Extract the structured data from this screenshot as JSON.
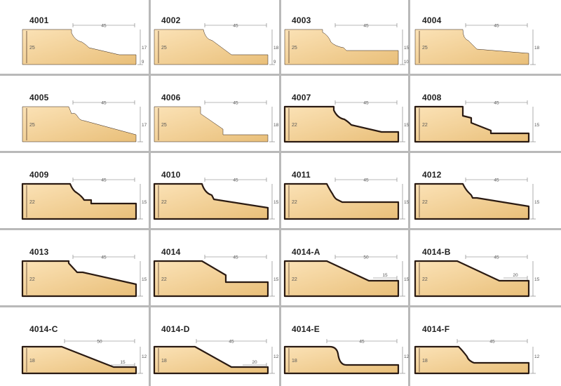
{
  "colors": {
    "wood_light": "#fbe2b6",
    "wood_dark": "#e9bf79",
    "outline": "#2a1a12",
    "divider": "#b9b9b9",
    "dim": "#555555"
  },
  "profiles": [
    {
      "code": "4001",
      "shape": "ogee_a",
      "outlined": false,
      "top_dim": "45",
      "height_dim": "25",
      "right_top": "17",
      "right_bottom": "9",
      "bottom_dim": ""
    },
    {
      "code": "4002",
      "shape": "cove_step",
      "outlined": false,
      "top_dim": "45",
      "height_dim": "25",
      "right_top": "18",
      "right_bottom": "9",
      "bottom_dim": ""
    },
    {
      "code": "4003",
      "shape": "ogee_b",
      "outlined": false,
      "top_dim": "45",
      "height_dim": "25",
      "right_top": "15",
      "right_bottom": "10",
      "bottom_dim": ""
    },
    {
      "code": "4004",
      "shape": "ogee_c",
      "outlined": false,
      "top_dim": "45",
      "height_dim": "25",
      "right_top": "18",
      "right_bottom": "",
      "bottom_dim": ""
    },
    {
      "code": "4005",
      "shape": "bead_slope",
      "outlined": false,
      "top_dim": "45",
      "height_dim": "25",
      "right_top": "17",
      "right_bottom": "",
      "bottom_dim": ""
    },
    {
      "code": "4006",
      "shape": "bevel_step",
      "outlined": false,
      "top_dim": "45",
      "height_dim": "25",
      "right_top": "18",
      "right_bottom": "",
      "bottom_dim": ""
    },
    {
      "code": "4007",
      "shape": "ogee_a",
      "outlined": true,
      "top_dim": "45",
      "height_dim": "22",
      "right_top": "15",
      "right_bottom": "",
      "bottom_dim": ""
    },
    {
      "code": "4008",
      "shape": "step_b",
      "outlined": true,
      "top_dim": "45",
      "height_dim": "22",
      "right_top": "15",
      "right_bottom": "",
      "bottom_dim": ""
    },
    {
      "code": "4009",
      "shape": "ogee_d",
      "outlined": true,
      "top_dim": "45",
      "height_dim": "22",
      "right_top": "15",
      "right_bottom": "",
      "bottom_dim": ""
    },
    {
      "code": "4010",
      "shape": "cove_long",
      "outlined": true,
      "top_dim": "45",
      "height_dim": "22",
      "right_top": "15",
      "right_bottom": "",
      "bottom_dim": ""
    },
    {
      "code": "4011",
      "shape": "ogee_e",
      "outlined": true,
      "top_dim": "45",
      "height_dim": "22",
      "right_top": "15",
      "right_bottom": "",
      "bottom_dim": ""
    },
    {
      "code": "4012",
      "shape": "ogee_f",
      "outlined": true,
      "top_dim": "45",
      "height_dim": "22",
      "right_top": "15",
      "right_bottom": "",
      "bottom_dim": ""
    },
    {
      "code": "4013",
      "shape": "chamfer_step",
      "outlined": true,
      "top_dim": "45",
      "height_dim": "22",
      "right_top": "15",
      "right_bottom": "",
      "bottom_dim": ""
    },
    {
      "code": "4014",
      "shape": "bevel_flat",
      "outlined": true,
      "top_dim": "45",
      "height_dim": "22",
      "right_top": "15",
      "right_bottom": "",
      "bottom_dim": ""
    },
    {
      "code": "4014-A",
      "shape": "long_bevel",
      "outlined": true,
      "top_dim": "50",
      "height_dim": "22",
      "right_top": "15",
      "right_bottom": "",
      "bottom_dim": "15"
    },
    {
      "code": "4014-B",
      "shape": "long_bevel",
      "outlined": true,
      "top_dim": "45",
      "height_dim": "22",
      "right_top": "15",
      "right_bottom": "",
      "bottom_dim": "20"
    },
    {
      "code": "4014-C",
      "shape": "bevel_18",
      "outlined": true,
      "top_dim": "50",
      "height_dim": "18",
      "right_top": "12",
      "right_bottom": "",
      "bottom_dim": "15"
    },
    {
      "code": "4014-D",
      "shape": "bevel_18b",
      "outlined": true,
      "top_dim": "45",
      "height_dim": "18",
      "right_top": "12",
      "right_bottom": "",
      "bottom_dim": "20"
    },
    {
      "code": "4014-E",
      "shape": "round_18",
      "outlined": true,
      "top_dim": "45",
      "height_dim": "18",
      "right_top": "12",
      "right_bottom": "",
      "bottom_dim": ""
    },
    {
      "code": "4014-F",
      "shape": "round_18b",
      "outlined": true,
      "top_dim": "45",
      "height_dim": "18",
      "right_top": "12",
      "right_bottom": "",
      "bottom_dim": ""
    }
  ]
}
